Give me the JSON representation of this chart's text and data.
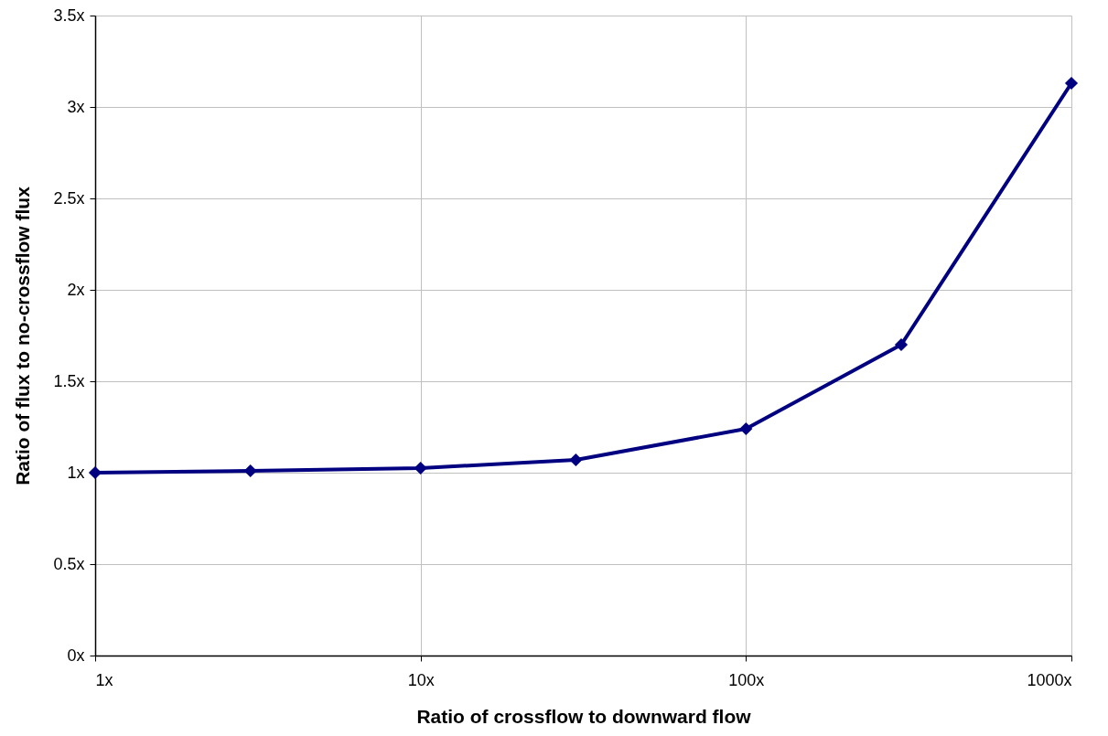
{
  "chart_data": {
    "type": "line",
    "xlabel": "Ratio of crossflow to downward flow",
    "ylabel": "Ratio of flux to no-crossflow flux",
    "x": [
      1,
      3,
      10,
      30,
      100,
      300,
      1000
    ],
    "series": [
      {
        "color": "#000080",
        "values": [
          1.0,
          1.01,
          1.025,
          1.07,
          1.24,
          1.7,
          3.13
        ]
      }
    ],
    "log": "x",
    "xlim": [
      1,
      1000
    ],
    "xticks": [
      {
        "value": 1,
        "label": "1x"
      },
      {
        "value": 10,
        "label": "10x"
      },
      {
        "value": 100,
        "label": "100x"
      },
      {
        "value": 1000,
        "label": "1000x"
      }
    ],
    "ylim": [
      0,
      3.5
    ],
    "yticks": [
      {
        "value": 0,
        "label": "0x"
      },
      {
        "value": 0.5,
        "label": "0.5x"
      },
      {
        "value": 1,
        "label": "1x"
      },
      {
        "value": 1.5,
        "label": "1.5x"
      },
      {
        "value": 2,
        "label": "2x"
      },
      {
        "value": 2.5,
        "label": "2.5x"
      },
      {
        "value": 3,
        "label": "3x"
      },
      {
        "value": 3.5,
        "label": "3.5x"
      }
    ],
    "grid": true,
    "marker": "diamond",
    "line_style": "solid"
  }
}
